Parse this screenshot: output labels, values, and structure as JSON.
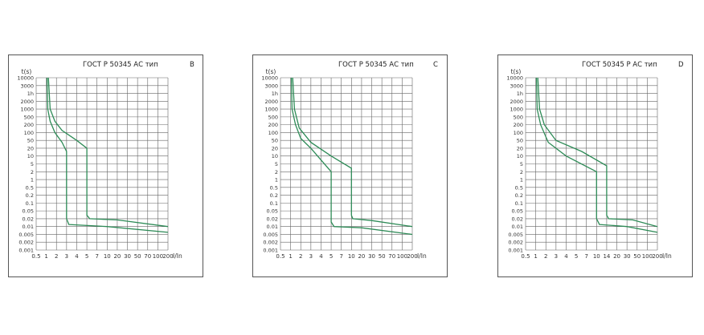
{
  "chart_data": [
    {
      "type": "line",
      "title": "ГОСТ Р 50345 АС тип",
      "curve_type": "B",
      "ylabel": "t(s)",
      "xlabel": "I/In",
      "x_ticks": [
        "0.5",
        "1",
        "2",
        "3",
        "4",
        "5",
        "7",
        "10",
        "20",
        "30",
        "50",
        "70",
        "100",
        "200"
      ],
      "y_ticks": [
        "10000",
        "3000",
        "1h",
        "2000",
        "1000",
        "500",
        "200",
        "100",
        "50",
        "20",
        "10",
        "5",
        "2",
        "1",
        "0.5",
        "0.2",
        "0.1",
        "0.05",
        "0.02",
        "0.01",
        "0.005",
        "0.002",
        "0.001"
      ],
      "color": "#2e8b57",
      "series": [
        {
          "points": [
            [
              1.05,
              10000
            ],
            [
              1.1,
              1000
            ],
            [
              1.3,
              300
            ],
            [
              1.8,
              100
            ],
            [
              2.5,
              40
            ],
            [
              3,
              15
            ],
            [
              3,
              0.02
            ],
            [
              3.2,
              0.012
            ],
            [
              10,
              0.01
            ],
            [
              200,
              0.006
            ]
          ]
        },
        {
          "points": [
            [
              1.15,
              10000
            ],
            [
              1.3,
              1000
            ],
            [
              1.8,
              300
            ],
            [
              2.5,
              120
            ],
            [
              4,
              50
            ],
            [
              5,
              20
            ],
            [
              5,
              0.03
            ],
            [
              5.5,
              0.02
            ],
            [
              20,
              0.018
            ],
            [
              200,
              0.01
            ]
          ]
        }
      ]
    },
    {
      "type": "line",
      "title": "ГОСТ Р 50345 АС тип",
      "curve_type": "C",
      "ylabel": "t(s)",
      "xlabel": "I/In",
      "x_ticks": [
        "0.5",
        "1",
        "2",
        "3",
        "4",
        "5",
        "7",
        "10",
        "20",
        "30",
        "50",
        "70",
        "100",
        "200"
      ],
      "y_ticks": [
        "10000",
        "3000",
        "1h",
        "2000",
        "1000",
        "500",
        "200",
        "100",
        "50",
        "20",
        "10",
        "5",
        "2",
        "1",
        "0.5",
        "0.2",
        "0.1",
        "0.05",
        "0.02",
        "0.01",
        "0.005",
        "0.002",
        "0.001"
      ],
      "color": "#2e8b57",
      "series": [
        {
          "points": [
            [
              1.05,
              10000
            ],
            [
              1.1,
              1000
            ],
            [
              1.4,
              200
            ],
            [
              2,
              60
            ],
            [
              3,
              20
            ],
            [
              5,
              2
            ],
            [
              5,
              0.015
            ],
            [
              5.5,
              0.01
            ],
            [
              20,
              0.009
            ],
            [
              200,
              0.005
            ]
          ]
        },
        {
          "points": [
            [
              1.15,
              10000
            ],
            [
              1.3,
              1000
            ],
            [
              1.8,
              150
            ],
            [
              3,
              40
            ],
            [
              5,
              10
            ],
            [
              10,
              3
            ],
            [
              10,
              0.03
            ],
            [
              11,
              0.02
            ],
            [
              30,
              0.017
            ],
            [
              200,
              0.01
            ]
          ]
        }
      ]
    },
    {
      "type": "line",
      "title": "ГОСТ 50345 Р АС тип",
      "curve_type": "D",
      "ylabel": "t(s)",
      "xlabel": "I/In",
      "x_ticks": [
        "0.5",
        "1",
        "2",
        "3",
        "4",
        "5",
        "7",
        "10",
        "14",
        "20",
        "30",
        "50",
        "100",
        "200"
      ],
      "y_ticks": [
        "10000",
        "3000",
        "1h",
        "2000",
        "1000",
        "500",
        "200",
        "100",
        "50",
        "20",
        "10",
        "5",
        "2",
        "1",
        "0.5",
        "0.2",
        "0.1",
        "0.05",
        "0.02",
        "0.01",
        "0.005",
        "0.002",
        "0.001"
      ],
      "color": "#2e8b57",
      "series": [
        {
          "points": [
            [
              1.05,
              10000
            ],
            [
              1.1,
              1000
            ],
            [
              1.4,
              200
            ],
            [
              2.2,
              40
            ],
            [
              4,
              10
            ],
            [
              10,
              2
            ],
            [
              10,
              0.02
            ],
            [
              11,
              0.012
            ],
            [
              30,
              0.01
            ],
            [
              200,
              0.006
            ]
          ]
        },
        {
          "points": [
            [
              1.15,
              10000
            ],
            [
              1.3,
              1000
            ],
            [
              1.8,
              200
            ],
            [
              3,
              50
            ],
            [
              6,
              15
            ],
            [
              14,
              4
            ],
            [
              14,
              0.03
            ],
            [
              15,
              0.02
            ],
            [
              40,
              0.018
            ],
            [
              200,
              0.01
            ]
          ]
        }
      ]
    }
  ]
}
